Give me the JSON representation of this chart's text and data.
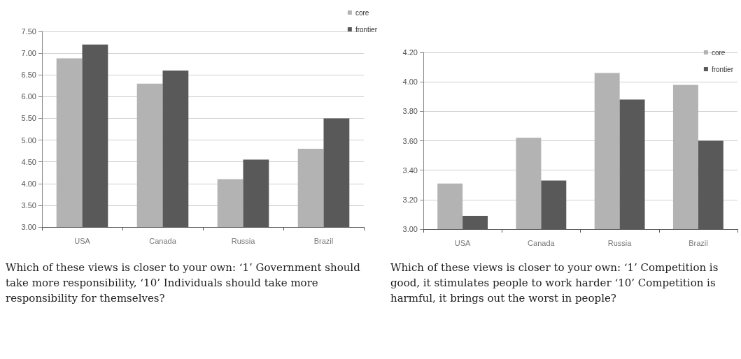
{
  "chart_data": [
    {
      "type": "bar",
      "categories": [
        "USA",
        "Canada",
        "Russia",
        "Brazil"
      ],
      "series": [
        {
          "name": "core",
          "color": "#b3b3b3",
          "values": [
            6.88,
            6.3,
            4.1,
            4.8
          ]
        },
        {
          "name": "frontier",
          "color": "#595959",
          "values": [
            7.2,
            6.6,
            4.55,
            5.5
          ]
        }
      ],
      "ylim": [
        3,
        7.5
      ],
      "yticks": [
        {
          "value": 3,
          "label": "3.00"
        },
        {
          "value": 3.5,
          "label": "3.50"
        },
        {
          "value": 4,
          "label": "4.00"
        },
        {
          "value": 4.5,
          "label": "4.50"
        },
        {
          "value": 5,
          "label": "5.00"
        },
        {
          "value": 5.5,
          "label": "5.50"
        },
        {
          "value": 6,
          "label": "6.00"
        },
        {
          "value": 6.5,
          "label": "6.50"
        },
        {
          "value": 7,
          "label": "7.00"
        },
        {
          "value": 7.5,
          "label": "7.50"
        }
      ],
      "grid": "y",
      "legend": "top right",
      "annotations": [
        "Which of these views is closer to your own: ‘1’ Government should take more responsibility, ‘10’ Individuals should take more responsibility for themselves?"
      ]
    },
    {
      "type": "bar",
      "categories": [
        "USA",
        "Canada",
        "Russia",
        "Brazil"
      ],
      "series": [
        {
          "name": "core",
          "color": "#b3b3b3",
          "values": [
            3.31,
            3.62,
            4.06,
            3.98
          ]
        },
        {
          "name": "frontier",
          "color": "#595959",
          "values": [
            3.09,
            3.33,
            3.88,
            3.6
          ]
        }
      ],
      "ylim": [
        3,
        4.2
      ],
      "yticks": [
        {
          "value": 3,
          "label": "3.00"
        },
        {
          "value": 3.2,
          "label": "3.20"
        },
        {
          "value": 3.4,
          "label": "3.40"
        },
        {
          "value": 3.6,
          "label": "3.60"
        },
        {
          "value": 3.8,
          "label": "3.80"
        },
        {
          "value": 4,
          "label": "4.00"
        },
        {
          "value": 4.2,
          "label": "4.20"
        }
      ],
      "grid": "y",
      "legend": "top right",
      "annotations": [
        "Which of these views is closer to your own: ‘1’ Competition is good, it stimulates people to work harder ‘10’ Competition is harmful, it brings out the worst in people?"
      ]
    }
  ]
}
